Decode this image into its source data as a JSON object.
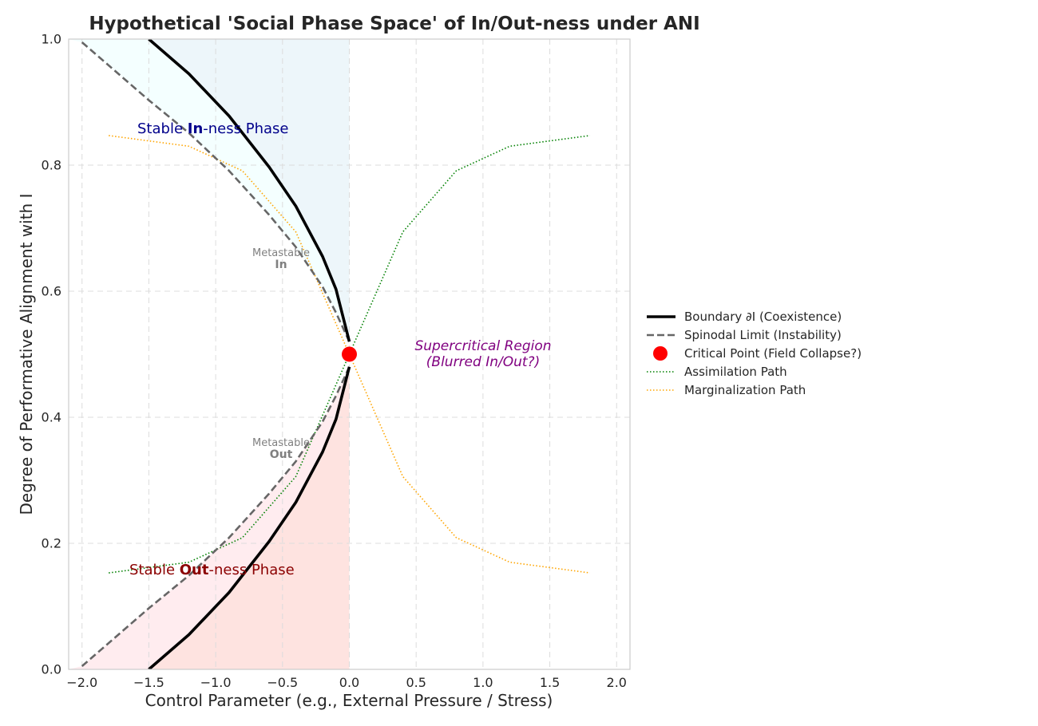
{
  "chart_data": {
    "type": "line",
    "title": "Hypothetical 'Social Phase Space' of In/Out-ness under ANI",
    "xlabel": "Control Parameter (e.g., External Pressure / Stress)",
    "ylabel": "Degree of Performative Alignment with I",
    "xlim": [
      -2.1,
      2.1
    ],
    "ylim": [
      0.0,
      1.0
    ],
    "xticks": [
      "−2.0",
      "−1.5",
      "−1.0",
      "−0.5",
      "0.0",
      "0.5",
      "1.0",
      "1.5",
      "2.0"
    ],
    "yticks": [
      "0.0",
      "0.2",
      "0.4",
      "0.6",
      "0.8",
      "1.0"
    ],
    "grid": true,
    "legend_position": "right",
    "series": [
      {
        "name": "Boundary ∂I (Coexistence)",
        "color": "#000000",
        "style": "solid",
        "x_top": [
          -1.5,
          -1.2,
          -0.9,
          -0.6,
          -0.4,
          -0.2,
          -0.1,
          0.0
        ],
        "y_top": [
          1.0,
          0.945,
          0.878,
          0.797,
          0.735,
          0.655,
          0.603,
          0.52
        ],
        "x_bottom": [
          -1.5,
          -1.2,
          -0.9,
          -0.6,
          -0.4,
          -0.2,
          -0.1,
          0.0
        ],
        "y_bottom": [
          0.0,
          0.055,
          0.122,
          0.203,
          0.265,
          0.345,
          0.397,
          0.48
        ]
      },
      {
        "name": "Spinodal Limit (Instability)",
        "color": "#666666",
        "style": "dashed",
        "x_top": [
          -2.0,
          -1.5,
          -1.2,
          -0.9,
          -0.6,
          -0.4,
          -0.2,
          -0.1,
          0.0
        ],
        "y_top": [
          0.995,
          0.903,
          0.851,
          0.791,
          0.721,
          0.67,
          0.607,
          0.566,
          0.52
        ],
        "x_bottom": [
          -2.0,
          -1.5,
          -1.2,
          -0.9,
          -0.6,
          -0.4,
          -0.2,
          -0.1,
          0.0
        ],
        "y_bottom": [
          0.005,
          0.097,
          0.149,
          0.209,
          0.279,
          0.33,
          0.393,
          0.434,
          0.48
        ]
      },
      {
        "name": "Critical Point (Field Collapse?)",
        "color": "#ff0000",
        "style": "marker",
        "x": [
          0.0
        ],
        "y": [
          0.5
        ]
      },
      {
        "name": "Assimilation Path",
        "color": "#008000",
        "style": "dotted",
        "x": [
          -1.8,
          -1.2,
          -0.8,
          -0.4,
          0.0,
          0.4,
          0.8,
          1.2,
          1.8
        ],
        "y": [
          0.153,
          0.17,
          0.209,
          0.306,
          0.5,
          0.694,
          0.791,
          0.83,
          0.847
        ]
      },
      {
        "name": "Marginalization Path",
        "color": "#ffa500",
        "style": "dotted",
        "x": [
          -1.8,
          -1.2,
          -0.8,
          -0.4,
          0.0,
          0.4,
          0.8,
          1.2,
          1.8
        ],
        "y": [
          0.847,
          0.83,
          0.791,
          0.694,
          0.5,
          0.306,
          0.209,
          0.17,
          0.153
        ]
      }
    ],
    "colors": {
      "in_fill": "#add8e6",
      "in_fill_light": "#e0ffff",
      "out_fill": "#fa8072",
      "out_fill_light": "#ffc0cb",
      "in_text": "#00008b",
      "out_text": "#8b0000",
      "super_text": "#800080",
      "meta_text": "#808080"
    },
    "annotations": {
      "stable_in_pre": "Stable ",
      "stable_in_bold": "In",
      "stable_in_post": "-ness Phase",
      "stable_out_pre": "Stable ",
      "stable_out_bold": "Out",
      "stable_out_post": "-ness Phase",
      "meta_in_1": "Metastable",
      "meta_in_2": "In",
      "meta_out_1": "Metastable",
      "meta_out_2": "Out",
      "super_1": "Supercritical Region",
      "super_2": "(Blurred In/Out?)"
    }
  }
}
